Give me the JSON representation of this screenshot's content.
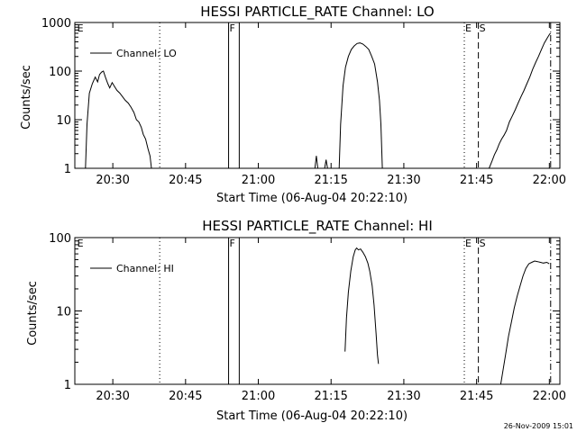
{
  "stamp": "26-Nov-2009 15:01",
  "chart_data": [
    {
      "type": "line",
      "title": "HESSI PARTICLE_RATE Channel: LO",
      "xlabel": "Start Time (06-Aug-04 20:22:10)",
      "ylabel": "Counts/sec",
      "x_unit": "minutes after 20:22:10",
      "xlim": [
        0,
        100
      ],
      "ylim": [
        1,
        1000
      ],
      "yscale": "log",
      "x_ticks": [
        {
          "x": 7.83,
          "label": "20:30"
        },
        {
          "x": 22.83,
          "label": "20:45"
        },
        {
          "x": 37.83,
          "label": "21:00"
        },
        {
          "x": 52.83,
          "label": "21:15"
        },
        {
          "x": 67.83,
          "label": "21:30"
        },
        {
          "x": 82.83,
          "label": "21:45"
        },
        {
          "x": 97.83,
          "label": "22:00"
        }
      ],
      "y_ticks": [
        {
          "y": 1,
          "label": "1"
        },
        {
          "y": 10,
          "label": "10"
        },
        {
          "y": 100,
          "label": "100"
        },
        {
          "y": 1000,
          "label": "1000"
        }
      ],
      "legend": {
        "label": "Channel: LO",
        "position": "top-left"
      },
      "markers": [
        {
          "label": "E",
          "x": 0.3,
          "style": "none"
        },
        {
          "label": "",
          "x": 17.5,
          "style": "dotted"
        },
        {
          "label": "F",
          "x": 31.7,
          "style": "solid"
        },
        {
          "label": "",
          "x": 33.9,
          "style": "solid"
        },
        {
          "label": "E",
          "x": 80.3,
          "style": "dotted"
        },
        {
          "label": "S",
          "x": 83.2,
          "style": "dashed"
        },
        {
          "label": "",
          "x": 98.1,
          "style": "dashdot"
        }
      ],
      "series": [
        {
          "segments": [
            [
              [
                2.2,
                1
              ],
              [
                2.5,
                8
              ],
              [
                3.0,
                35
              ],
              [
                3.6,
                55
              ],
              [
                4.2,
                75
              ],
              [
                4.7,
                60
              ],
              [
                5.1,
                85
              ],
              [
                5.5,
                95
              ],
              [
                5.9,
                100
              ],
              [
                6.3,
                75
              ],
              [
                6.8,
                55
              ],
              [
                7.2,
                45
              ],
              [
                7.7,
                58
              ],
              [
                8.2,
                48
              ],
              [
                8.7,
                40
              ],
              [
                9.3,
                35
              ],
              [
                9.8,
                30
              ],
              [
                10.4,
                25
              ],
              [
                11.0,
                22
              ],
              [
                11.6,
                18
              ],
              [
                12.2,
                14
              ],
              [
                12.7,
                10
              ],
              [
                13.2,
                9
              ],
              [
                13.7,
                7
              ],
              [
                14.1,
                5
              ],
              [
                14.6,
                4
              ],
              [
                15.1,
                2.5
              ],
              [
                15.5,
                1.8
              ],
              [
                15.8,
                1
              ]
            ],
            [
              [
                49.5,
                1
              ],
              [
                49.8,
                1.8
              ],
              [
                50.1,
                1
              ]
            ],
            [
              [
                51.5,
                1
              ],
              [
                51.8,
                1.5
              ],
              [
                52.1,
                1
              ]
            ],
            [
              [
                54.5,
                1
              ],
              [
                54.8,
                8
              ],
              [
                55.3,
                50
              ],
              [
                55.8,
                120
              ],
              [
                56.4,
                200
              ],
              [
                57.0,
                280
              ],
              [
                57.6,
                330
              ],
              [
                58.2,
                370
              ],
              [
                58.8,
                380
              ],
              [
                59.4,
                360
              ],
              [
                60.0,
                320
              ],
              [
                60.6,
                280
              ],
              [
                61.2,
                200
              ],
              [
                61.8,
                140
              ],
              [
                62.4,
                60
              ],
              [
                62.8,
                25
              ],
              [
                63.1,
                8
              ],
              [
                63.4,
                1
              ]
            ],
            [
              [
                85.4,
                1
              ],
              [
                86.0,
                1.4
              ],
              [
                86.5,
                1.9
              ],
              [
                87.0,
                2.4
              ],
              [
                87.5,
                3.2
              ],
              [
                88.0,
                4
              ],
              [
                88.5,
                4.8
              ],
              [
                89.0,
                6
              ],
              [
                89.6,
                9
              ],
              [
                90.2,
                12
              ],
              [
                90.8,
                16
              ],
              [
                91.4,
                22
              ],
              [
                92.0,
                30
              ],
              [
                92.6,
                40
              ],
              [
                93.2,
                55
              ],
              [
                93.8,
                75
              ],
              [
                94.4,
                110
              ],
              [
                95.0,
                150
              ],
              [
                95.6,
                200
              ],
              [
                96.2,
                280
              ],
              [
                96.8,
                380
              ],
              [
                97.4,
                480
              ],
              [
                97.9,
                580
              ],
              [
                98.1,
                600
              ]
            ]
          ]
        }
      ]
    },
    {
      "type": "line",
      "title": "HESSI PARTICLE_RATE Channel: HI",
      "xlabel": "Start Time (06-Aug-04 20:22:10)",
      "ylabel": "Counts/sec",
      "x_unit": "minutes after 20:22:10",
      "xlim": [
        0,
        100
      ],
      "ylim": [
        1,
        100
      ],
      "yscale": "log",
      "x_ticks": [
        {
          "x": 7.83,
          "label": "20:30"
        },
        {
          "x": 22.83,
          "label": "20:45"
        },
        {
          "x": 37.83,
          "label": "21:00"
        },
        {
          "x": 52.83,
          "label": "21:15"
        },
        {
          "x": 67.83,
          "label": "21:30"
        },
        {
          "x": 82.83,
          "label": "21:45"
        },
        {
          "x": 97.83,
          "label": "22:00"
        }
      ],
      "y_ticks": [
        {
          "y": 1,
          "label": "1"
        },
        {
          "y": 10,
          "label": "10"
        },
        {
          "y": 100,
          "label": "100"
        }
      ],
      "legend": {
        "label": "Channel: HI",
        "position": "top-left"
      },
      "markers": [
        {
          "label": "E",
          "x": 0.3,
          "style": "none"
        },
        {
          "label": "",
          "x": 17.5,
          "style": "dotted"
        },
        {
          "label": "F",
          "x": 31.7,
          "style": "solid"
        },
        {
          "label": "",
          "x": 33.9,
          "style": "solid"
        },
        {
          "label": "E",
          "x": 80.3,
          "style": "dotted"
        },
        {
          "label": "S",
          "x": 83.2,
          "style": "dashed"
        },
        {
          "label": "",
          "x": 98.1,
          "style": "dashdot"
        }
      ],
      "series": [
        {
          "segments": [
            [
              [
                55.7,
                2.8
              ],
              [
                56.0,
                8
              ],
              [
                56.4,
                18
              ],
              [
                56.9,
                35
              ],
              [
                57.4,
                55
              ],
              [
                57.8,
                68
              ],
              [
                58.1,
                72
              ],
              [
                58.5,
                68
              ],
              [
                58.9,
                70
              ],
              [
                59.4,
                63
              ],
              [
                59.9,
                55
              ],
              [
                60.4,
                45
              ],
              [
                60.8,
                35
              ],
              [
                61.3,
                22
              ],
              [
                61.7,
                12
              ],
              [
                62.1,
                5
              ],
              [
                62.4,
                2.5
              ],
              [
                62.6,
                1.9
              ]
            ],
            [
              [
                87.8,
                1
              ],
              [
                88.3,
                1.6
              ],
              [
                88.8,
                2.5
              ],
              [
                89.4,
                4.5
              ],
              [
                90.0,
                7
              ],
              [
                90.6,
                11
              ],
              [
                91.2,
                16
              ],
              [
                91.8,
                22
              ],
              [
                92.4,
                30
              ],
              [
                93.0,
                38
              ],
              [
                93.6,
                44
              ],
              [
                94.2,
                46
              ],
              [
                94.8,
                48
              ],
              [
                95.4,
                47
              ],
              [
                96.0,
                46
              ],
              [
                96.6,
                45
              ],
              [
                97.3,
                46
              ],
              [
                97.8,
                44
              ]
            ]
          ]
        }
      ]
    }
  ]
}
